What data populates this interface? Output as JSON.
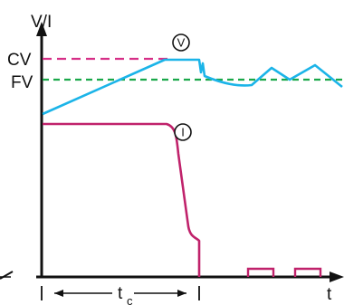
{
  "labels": {
    "y_axis": "V/I",
    "cv": "CV",
    "fv": "FV",
    "voltage_marker": "V",
    "current_marker": "I",
    "x_axis": "t",
    "tc_main": "t",
    "tc_sub": "c"
  },
  "colors": {
    "axis": "#111111",
    "cv_line": "#d62f87",
    "fv_line": "#1aa84a",
    "voltage_curve": "#1bb4e8",
    "current_curve": "#c0226b"
  }
}
